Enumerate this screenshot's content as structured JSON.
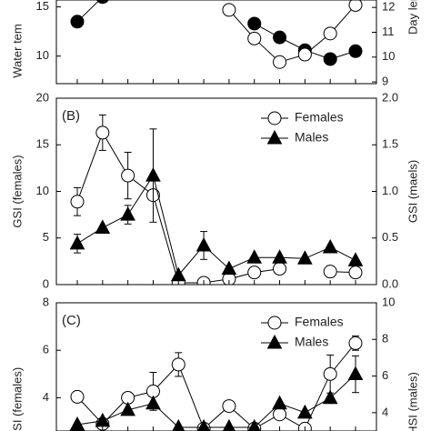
{
  "chart_data": [
    {
      "type": "line",
      "ylabel": "Water tem",
      "y2label": "Day len",
      "categories": [
        null,
        null,
        null,
        null,
        null,
        null,
        null,
        null,
        null,
        null,
        null,
        null
      ],
      "ylim": [
        7.2,
        15.7
      ],
      "yticks": [
        15,
        10
      ],
      "y2lim": [
        8.93,
        12.3
      ],
      "y2ticks": [
        12,
        11,
        10,
        9
      ],
      "series": [
        {
          "marker": "circle",
          "fill": "filled",
          "color": "#000",
          "axis": "y",
          "values": [
            13.5,
            16,
            null,
            null,
            null,
            null,
            null,
            13.3,
            11.9,
            10.6,
            9.7,
            10.5
          ]
        },
        {
          "marker": "circle",
          "fill": "open",
          "color": "#000",
          "axis": "y2",
          "values": [
            null,
            null,
            null,
            null,
            null,
            null,
            11.9,
            10.75,
            9.8,
            10.1,
            10.95,
            12.1
          ]
        }
      ]
    },
    {
      "type": "line",
      "label": "(B)",
      "ylabel": "GSI (females)",
      "y2label": "GSI (maels)",
      "categories": [
        null,
        null,
        null,
        null,
        null,
        null,
        null,
        null,
        null,
        null,
        null,
        null
      ],
      "ylim": [
        0,
        20
      ],
      "yticks": [
        0,
        5,
        10,
        15,
        20
      ],
      "y2lim": [
        0,
        2
      ],
      "y2ticks": [
        {
          "value": 0,
          "label": "0.0"
        },
        {
          "value": 0.5,
          "label": "0.5"
        },
        {
          "value": 1,
          "label": "1.0"
        },
        {
          "value": 1.5,
          "label": "1.5"
        },
        {
          "value": 2,
          "label": "2.0"
        }
      ],
      "series": [
        {
          "name": "Females",
          "marker": "circle",
          "fill": "open",
          "color": "#000",
          "axis": "y",
          "values": [
            8.9,
            16.3,
            11.7,
            9.6,
            0.2,
            0.2,
            0.6,
            1.3,
            1.7,
            null,
            1.4,
            1.3
          ],
          "errors": [
            1.5,
            1.9,
            2.5,
            null,
            null,
            null,
            null,
            null,
            null,
            null,
            null,
            null
          ]
        },
        {
          "name": "Males",
          "marker": "triangle",
          "fill": "filled",
          "color": "#000",
          "axis": "y2",
          "values": [
            0.44,
            0.61,
            0.75,
            1.17,
            0.1,
            0.42,
            0.17,
            0.29,
            0.29,
            0.28,
            0.4,
            0.26
          ],
          "errors": [
            0.1,
            null,
            0.1,
            0.5,
            null,
            0.15,
            null,
            null,
            null,
            null,
            null,
            null
          ]
        }
      ]
    },
    {
      "type": "line",
      "label": "(C)",
      "ylabel": "HSI (females)",
      "y2label": "HSI (males)",
      "categories": [
        null,
        null,
        null,
        null,
        null,
        null,
        null,
        null,
        null,
        null,
        null,
        null
      ],
      "ylim": [
        2.6,
        8
      ],
      "yticks": [
        4,
        6,
        8
      ],
      "y2lim": [
        3,
        10
      ],
      "y2ticks": [
        4,
        6,
        8,
        10
      ],
      "series": [
        {
          "name": "Females",
          "marker": "circle",
          "fill": "open",
          "color": "#000",
          "axis": "y",
          "values": [
            4.04,
            2.9,
            4.0,
            4.27,
            5.4,
            2.7,
            3.65,
            2.7,
            3.3,
            2.7,
            5.0,
            6.3
          ],
          "errors": [
            null,
            null,
            null,
            0.8,
            0.5,
            null,
            null,
            null,
            null,
            null,
            0.8,
            0.3
          ]
        },
        {
          "name": "Males",
          "marker": "triangle",
          "fill": "filled",
          "color": "#000",
          "axis": "y2",
          "values": [
            3.35,
            3.55,
            4.15,
            4.5,
            3.2,
            3.2,
            3.2,
            3.2,
            4.5,
            4.0,
            4.8,
            6.1
          ],
          "errors": [
            null,
            null,
            null,
            null,
            null,
            null,
            null,
            null,
            null,
            null,
            null,
            1.0
          ]
        }
      ]
    }
  ]
}
